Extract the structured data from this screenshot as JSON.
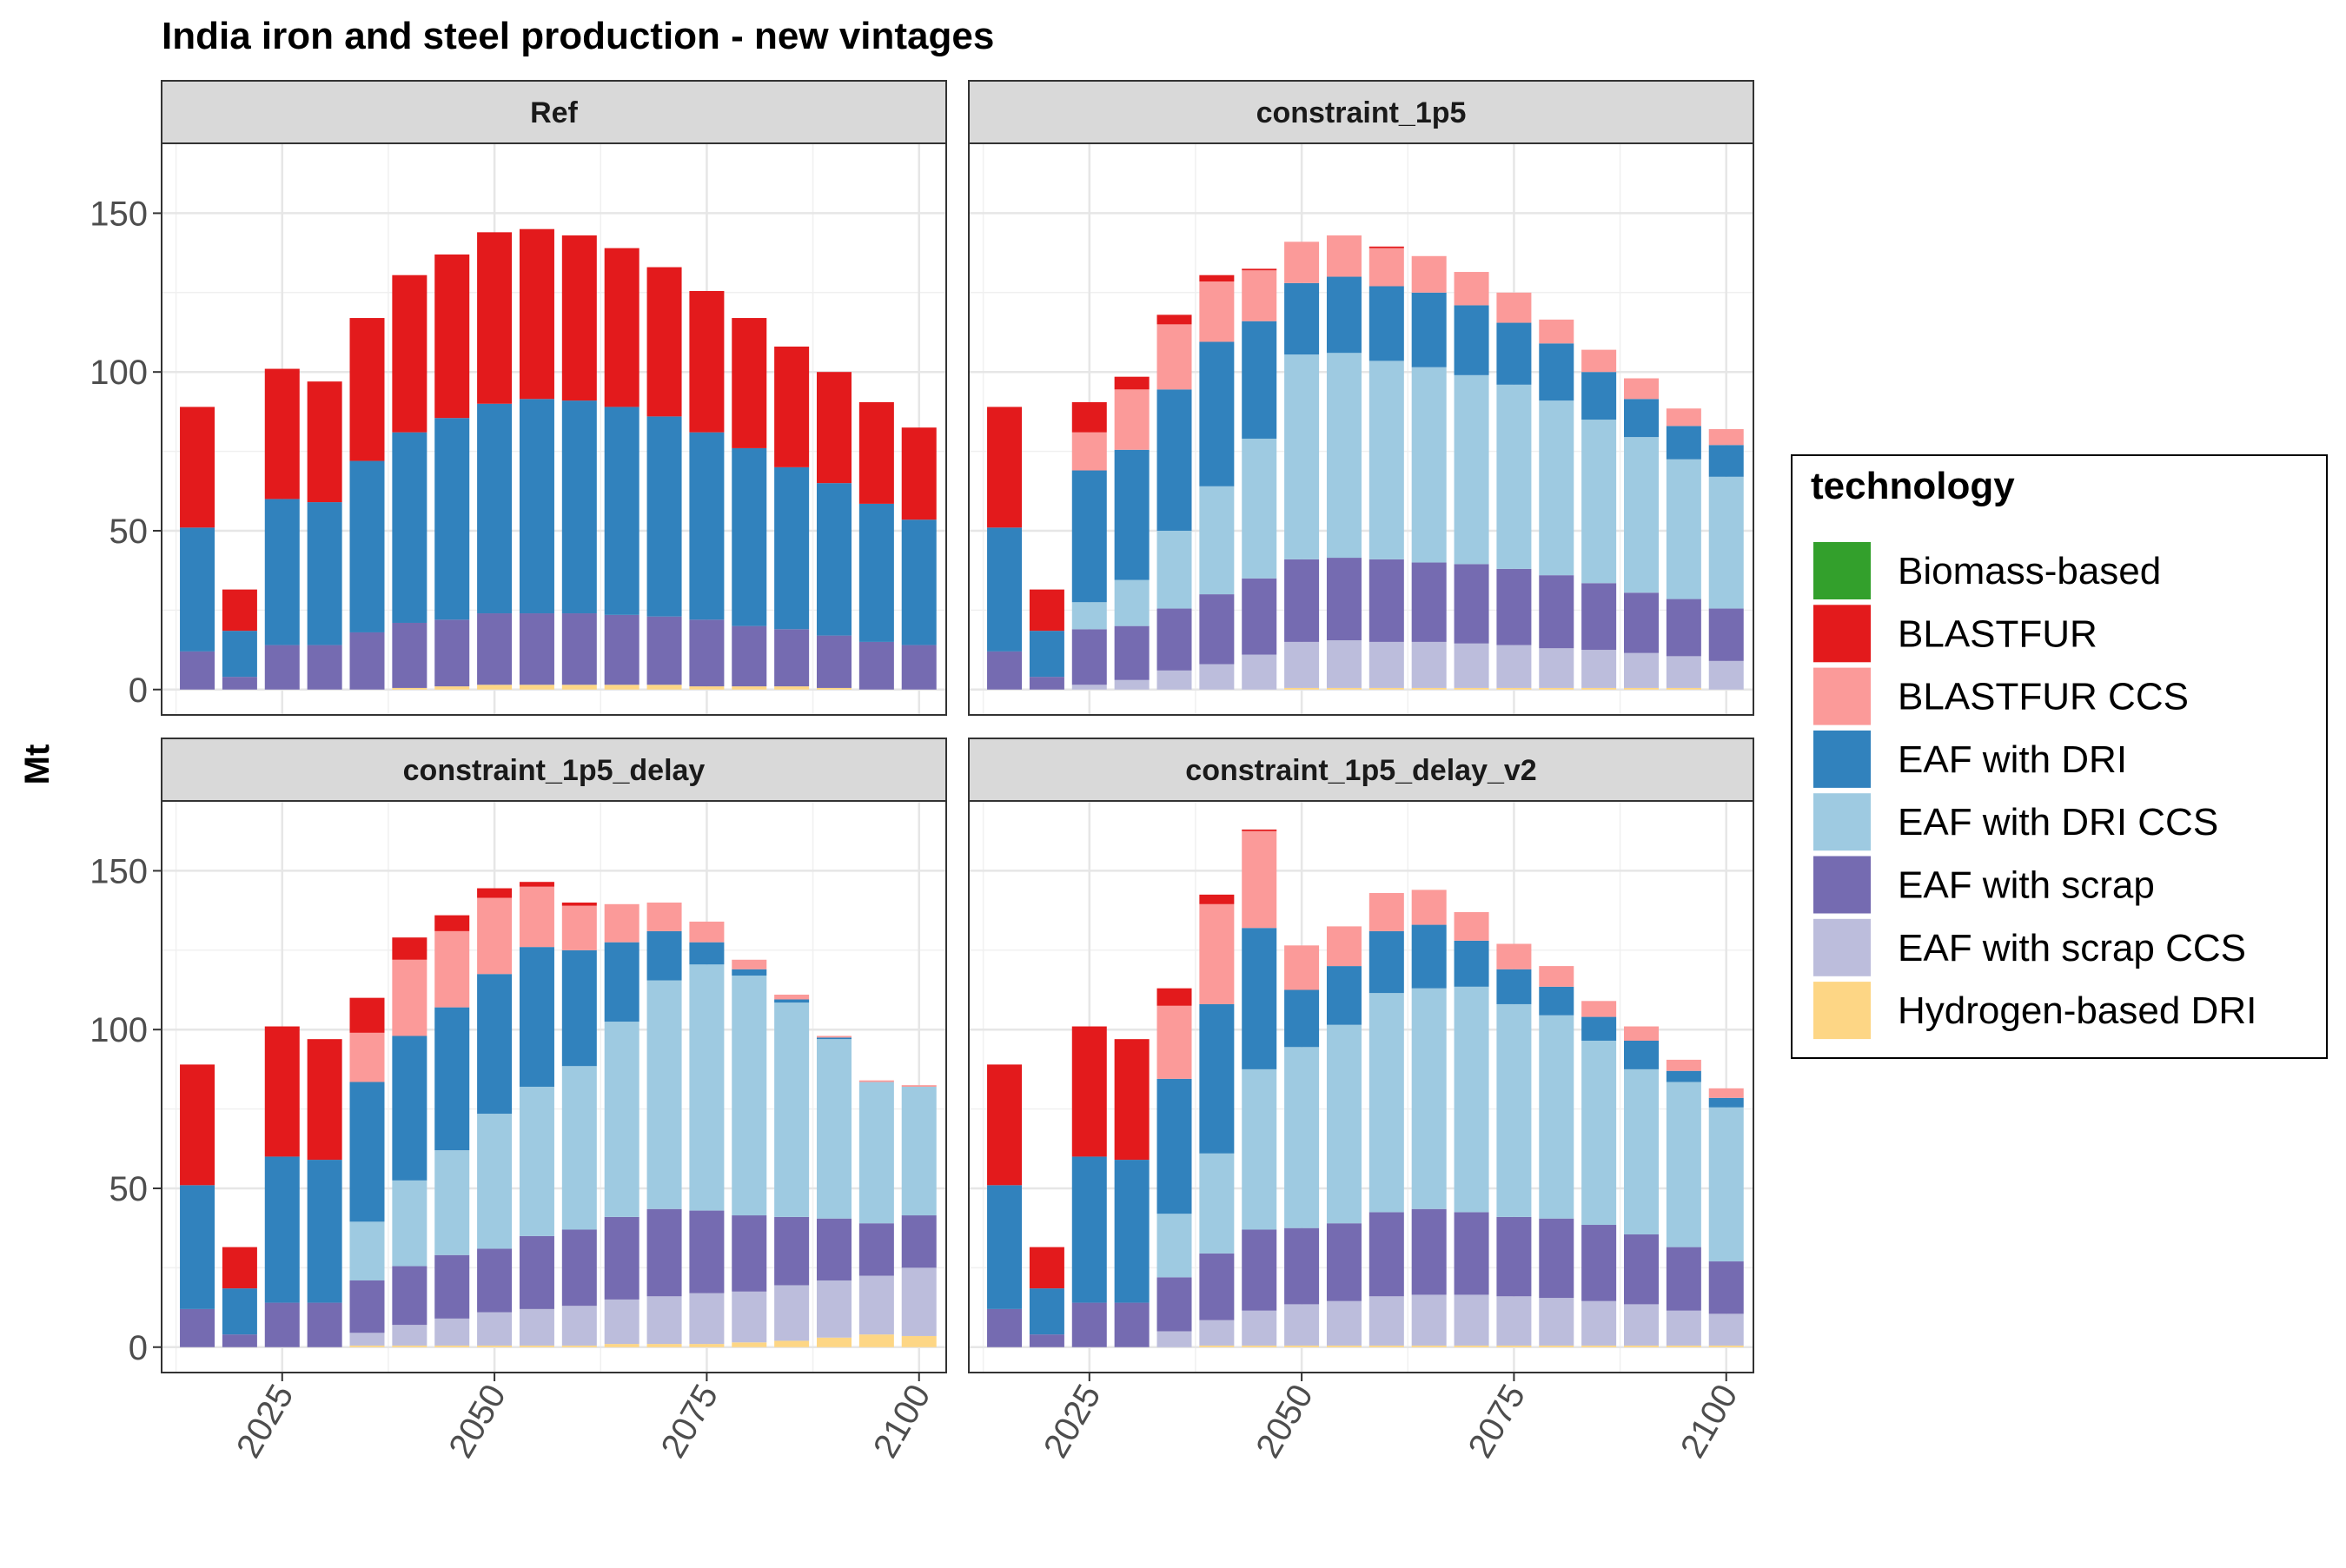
{
  "chart_data": {
    "type": "bar",
    "stacked": true,
    "title": "India  iron and steel production - new vintages",
    "ylabel": "Mt",
    "xlabel": "",
    "x": [
      2015,
      2020,
      2025,
      2030,
      2035,
      2040,
      2045,
      2050,
      2055,
      2060,
      2065,
      2070,
      2075,
      2080,
      2085,
      2090,
      2095,
      2100
    ],
    "xticks": [
      "2025",
      "2050",
      "2075",
      "2100"
    ],
    "xtick_values": [
      2025,
      2050,
      2075,
      2100
    ],
    "yticks": [
      "0",
      "50",
      "100",
      "150"
    ],
    "ytick_values": [
      0,
      50,
      100,
      150
    ],
    "ylim": [
      -8,
      172
    ],
    "xlim": [
      2010.8,
      2103.2
    ],
    "grid": true,
    "legend": {
      "title": "technology",
      "position": "right",
      "items": [
        {
          "name": "Biomass-based",
          "color": "#33a02c"
        },
        {
          "name": "BLASTFUR",
          "color": "#e31a1c"
        },
        {
          "name": "BLASTFUR CCS",
          "color": "#fb9a99"
        },
        {
          "name": "EAF with DRI",
          "color": "#3182bd"
        },
        {
          "name": "EAF with DRI CCS",
          "color": "#9ecae1"
        },
        {
          "name": "EAF with scrap",
          "color": "#756bb1"
        },
        {
          "name": "EAF with scrap CCS",
          "color": "#bcbddc"
        },
        {
          "name": "Hydrogen-based DRI",
          "color": "#fdd685"
        }
      ]
    },
    "stack_order": [
      "Hydrogen-based DRI",
      "EAF with scrap CCS",
      "EAF with scrap",
      "EAF with DRI CCS",
      "EAF with DRI",
      "BLASTFUR CCS",
      "BLASTFUR",
      "Biomass-based"
    ],
    "panels": [
      {
        "name": "Ref",
        "series": [
          {
            "name": "Hydrogen-based DRI",
            "values": [
              0,
              0,
              0,
              0,
              0,
              0.5,
              1,
              1.5,
              1.5,
              1.5,
              1.5,
              1.5,
              1,
              1,
              1,
              0.5,
              0,
              0
            ]
          },
          {
            "name": "EAF with scrap CCS",
            "values": [
              0,
              0,
              0,
              0,
              0,
              0,
              0,
              0,
              0,
              0,
              0,
              0,
              0,
              0,
              0,
              0,
              0,
              0
            ]
          },
          {
            "name": "EAF with scrap",
            "values": [
              12,
              4,
              14,
              14,
              18,
              20.5,
              21,
              22.5,
              22.5,
              22.5,
              22,
              21.5,
              21,
              19,
              18,
              16.5,
              15,
              14
            ]
          },
          {
            "name": "EAF with DRI CCS",
            "values": [
              0,
              0,
              0,
              0,
              0,
              0,
              0,
              0,
              0,
              0,
              0,
              0,
              0,
              0,
              0,
              0,
              0,
              0
            ]
          },
          {
            "name": "EAF with DRI",
            "values": [
              39,
              14.5,
              46,
              45,
              54,
              60,
              63.5,
              66,
              67.5,
              67,
              65.5,
              63,
              59,
              56,
              51,
              48,
              43.5,
              39.5
            ]
          },
          {
            "name": "BLASTFUR CCS",
            "values": [
              0,
              0,
              0,
              0,
              0,
              0,
              0,
              0,
              0,
              0,
              0,
              0,
              0,
              0,
              0,
              0,
              0,
              0
            ]
          },
          {
            "name": "BLASTFUR",
            "values": [
              38,
              13,
              41,
              38,
              45,
              49.5,
              51.5,
              54,
              53.5,
              52,
              50,
              47,
              44.5,
              41,
              38,
              35,
              32,
              29
            ]
          },
          {
            "name": "Biomass-based",
            "values": [
              0,
              0,
              0,
              0,
              0,
              0,
              0,
              0,
              0,
              0,
              0,
              0,
              0,
              0,
              0,
              0,
              0,
              0
            ]
          }
        ]
      },
      {
        "name": "constraint_1p5",
        "series": [
          {
            "name": "Hydrogen-based DRI",
            "values": [
              0,
              0,
              0,
              0,
              0,
              0,
              0,
              0.5,
              0.5,
              0.5,
              0.5,
              0.5,
              0.5,
              0.5,
              0.5,
              0.5,
              0.5,
              0
            ]
          },
          {
            "name": "EAF with scrap CCS",
            "values": [
              0,
              0,
              1.5,
              3,
              6,
              8,
              11,
              14.5,
              15,
              14.5,
              14.5,
              14,
              13.5,
              12.5,
              12,
              11,
              10,
              9
            ]
          },
          {
            "name": "EAF with scrap",
            "values": [
              12,
              4,
              17.5,
              17,
              19.5,
              22,
              24,
              26,
              26,
              26,
              25,
              25,
              24,
              23,
              21,
              19,
              18,
              16.5
            ]
          },
          {
            "name": "EAF with DRI CCS",
            "values": [
              0,
              0,
              8.5,
              14.5,
              24.5,
              34,
              44,
              64.5,
              64.5,
              62.5,
              61.5,
              59.5,
              58,
              55,
              51.5,
              49,
              44,
              41.5
            ]
          },
          {
            "name": "EAF with DRI",
            "values": [
              39,
              14.5,
              41.5,
              41,
              44.5,
              45.5,
              37,
              22.5,
              24,
              23.5,
              23.5,
              22,
              19.5,
              18,
              15,
              12,
              10.5,
              10
            ]
          },
          {
            "name": "BLASTFUR CCS",
            "values": [
              0,
              0,
              12,
              19,
              20.5,
              19,
              16,
              13,
              13,
              12,
              11.5,
              10.5,
              9.5,
              7.5,
              7,
              6.5,
              5.5,
              5
            ]
          },
          {
            "name": "BLASTFUR",
            "values": [
              38,
              13,
              9.5,
              4,
              3,
              2,
              0.5,
              0,
              0,
              0.5,
              0,
              0,
              0,
              0,
              0,
              0,
              0,
              0
            ]
          },
          {
            "name": "Biomass-based",
            "values": [
              0,
              0,
              0,
              0,
              0,
              0,
              0,
              0,
              0,
              0,
              0,
              0,
              0,
              0,
              0,
              0,
              0,
              0
            ]
          }
        ]
      },
      {
        "name": "constraint_1p5_delay",
        "series": [
          {
            "name": "Hydrogen-based DRI",
            "values": [
              0,
              0,
              0,
              0,
              0.5,
              0.5,
              0.5,
              0.5,
              0.5,
              0.5,
              1,
              1,
              1,
              1.5,
              2,
              3,
              4,
              3.5
            ]
          },
          {
            "name": "EAF with scrap CCS",
            "values": [
              0,
              0,
              0,
              0,
              4,
              6.5,
              8.5,
              10.5,
              11.5,
              12.5,
              14,
              15,
              16,
              16,
              17.5,
              18,
              18.5,
              21.5
            ]
          },
          {
            "name": "EAF with scrap",
            "values": [
              12,
              4,
              14,
              14,
              16.5,
              18.5,
              20,
              20,
              23,
              24,
              26,
              27.5,
              26,
              24,
              21.5,
              19.5,
              16.5,
              16.5
            ]
          },
          {
            "name": "EAF with DRI CCS",
            "values": [
              0,
              0,
              0,
              0,
              18.5,
              27,
              33,
              42.5,
              47,
              51.5,
              61.5,
              72,
              77.5,
              75.5,
              67.5,
              56.5,
              44.5,
              40.5
            ]
          },
          {
            "name": "EAF with DRI",
            "values": [
              39,
              14.5,
              46,
              45,
              44,
              45.5,
              45,
              44,
              44,
              36.5,
              25,
              15.5,
              7,
              2,
              1,
              0.5,
              0,
              0
            ]
          },
          {
            "name": "BLASTFUR CCS",
            "values": [
              0,
              0,
              0,
              0,
              15.5,
              24,
              24,
              24,
              19,
              14,
              12,
              9,
              6.5,
              3,
              1.5,
              0.5,
              0.5,
              0.5
            ]
          },
          {
            "name": "BLASTFUR",
            "values": [
              38,
              13,
              41,
              38,
              11,
              7,
              5,
              3,
              1.5,
              1,
              0,
              0,
              0,
              0,
              0,
              0,
              0,
              0
            ]
          },
          {
            "name": "Biomass-based",
            "values": [
              0,
              0,
              0,
              0,
              0,
              0,
              0,
              0,
              0,
              0,
              0,
              0,
              0,
              0,
              0,
              0,
              0,
              0
            ]
          }
        ]
      },
      {
        "name": "constraint_1p5_delay_v2",
        "series": [
          {
            "name": "Hydrogen-based DRI",
            "values": [
              0,
              0,
              0,
              0,
              0,
              0.5,
              0.5,
              0.5,
              0.5,
              0.5,
              0.5,
              0.5,
              0.5,
              0.5,
              0.5,
              0.5,
              0.5,
              0.5
            ]
          },
          {
            "name": "EAF with scrap CCS",
            "values": [
              0,
              0,
              0,
              0,
              5,
              8,
              11,
              13,
              14,
              15.5,
              16,
              16,
              15.5,
              15,
              14,
              13,
              11,
              10
            ]
          },
          {
            "name": "EAF with scrap",
            "values": [
              12,
              4,
              14,
              14,
              17,
              21,
              25.5,
              24,
              24.5,
              26.5,
              27,
              26,
              25,
              25,
              24,
              22,
              20,
              16.5
            ]
          },
          {
            "name": "EAF with DRI CCS",
            "values": [
              0,
              0,
              0,
              0,
              20,
              31.5,
              50.5,
              57,
              62.5,
              69,
              69.5,
              71,
              67,
              64,
              58,
              52,
              52,
              48.5
            ]
          },
          {
            "name": "EAF with DRI",
            "values": [
              39,
              14.5,
              46,
              45,
              42.5,
              47,
              44.5,
              18,
              18.5,
              19.5,
              20,
              14.5,
              11,
              9,
              7.5,
              9,
              3.5,
              3
            ]
          },
          {
            "name": "BLASTFUR CCS",
            "values": [
              0,
              0,
              0,
              0,
              23,
              31.5,
              30.5,
              14,
              12.5,
              12,
              11,
              9,
              8,
              6.5,
              5,
              4.5,
              3.5,
              3
            ]
          },
          {
            "name": "BLASTFUR",
            "values": [
              38,
              13,
              41,
              38,
              5.5,
              3,
              0.5,
              0,
              0,
              0,
              0,
              0,
              0,
              0,
              0,
              0,
              0,
              0
            ]
          },
          {
            "name": "Biomass-based",
            "values": [
              0,
              0,
              0,
              0,
              0,
              0,
              0,
              0,
              0,
              0,
              0,
              0,
              0,
              0,
              0,
              0,
              0,
              0
            ]
          }
        ]
      }
    ]
  }
}
